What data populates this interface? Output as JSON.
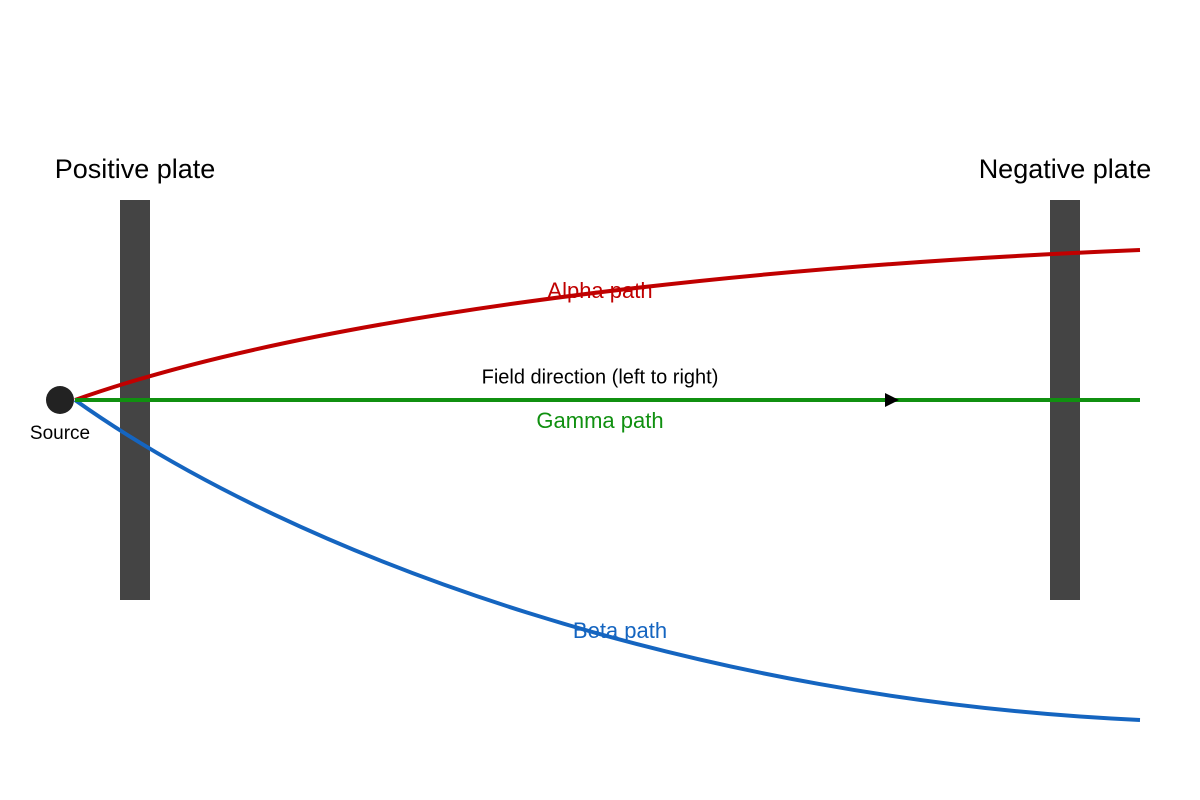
{
  "plates": {
    "positive": {
      "label": "Positive plate"
    },
    "negative": {
      "label": "Negative plate"
    }
  },
  "source": {
    "label": "Source"
  },
  "field": {
    "label": "Field direction (left to right)"
  },
  "paths": {
    "alpha": {
      "label": "Alpha path"
    },
    "gamma": {
      "label": "Gamma path"
    },
    "beta": {
      "label": "Beta path"
    }
  }
}
